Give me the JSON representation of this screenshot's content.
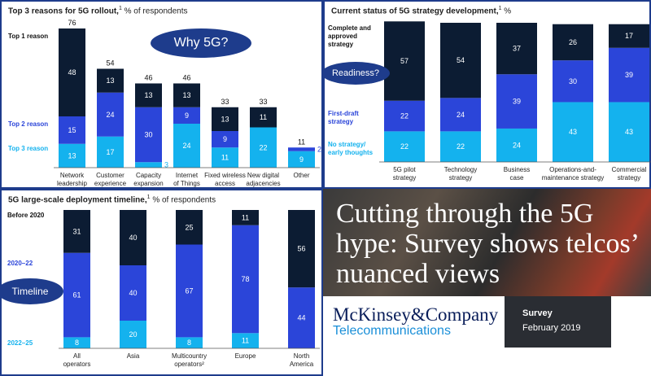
{
  "colors": {
    "dark": "#0c1c33",
    "mid": "#2b45d9",
    "light": "#14b2ee",
    "accent": "#1e3c8c"
  },
  "bubbles": {
    "why": "Why 5G?",
    "readiness": "Readiness?",
    "timeline": "Timeline"
  },
  "chart_data": [
    {
      "type": "bar",
      "title": "Top 3 reasons for 5G rollout,",
      "title_note": "1",
      "subtitle": "% of respondents",
      "categories": [
        [
          "Network",
          "leadership"
        ],
        [
          "Customer",
          "experience"
        ],
        [
          "Capacity",
          "expansion"
        ],
        [
          "Internet",
          "of Things"
        ],
        [
          "Fixed wireless",
          "access"
        ],
        [
          "New digital",
          "adjacencies"
        ],
        [
          "Other"
        ]
      ],
      "series": [
        {
          "name": "Top 1 reason",
          "values": [
            48,
            13,
            13,
            13,
            13,
            11,
            0
          ]
        },
        {
          "name": "Top 2 reason",
          "values": [
            15,
            24,
            30,
            9,
            9,
            0,
            2
          ]
        },
        {
          "name": "Top 3 reason",
          "values": [
            13,
            17,
            3,
            24,
            11,
            22,
            9
          ]
        }
      ],
      "totals": [
        76,
        54,
        46,
        46,
        33,
        33,
        11
      ],
      "ylim": [
        0,
        80
      ]
    },
    {
      "type": "bar",
      "title": "Current status of 5G strategy development,",
      "title_note": "1",
      "subtitle": "%",
      "categories": [
        [
          "5G pilot",
          "strategy"
        ],
        [
          "Technology",
          "strategy"
        ],
        [
          "Business",
          "case"
        ],
        [
          "Operations-and-",
          "maintenance strategy"
        ],
        [
          "Commercial",
          "strategy"
        ]
      ],
      "series": [
        {
          "name": [
            "Complete and",
            "approved",
            "strategy"
          ],
          "values": [
            57,
            54,
            37,
            26,
            17
          ]
        },
        {
          "name": [
            "First-draft",
            "strategy"
          ],
          "values": [
            22,
            24,
            39,
            30,
            39
          ]
        },
        {
          "name": [
            "No strategy/",
            "early thoughts"
          ],
          "values": [
            22,
            22,
            24,
            43,
            43
          ]
        }
      ],
      "ylim": [
        0,
        100
      ]
    },
    {
      "type": "bar",
      "title": "5G large-scale deployment timeline,",
      "title_note": "1",
      "subtitle": "% of respondents",
      "categories": [
        [
          "All",
          "operators"
        ],
        [
          "Asia"
        ],
        [
          "Multicountry",
          "operators²"
        ],
        [
          "Europe"
        ],
        [
          "North",
          "America"
        ]
      ],
      "series": [
        {
          "name": "Before 2020",
          "values": [
            31,
            40,
            25,
            11,
            56
          ]
        },
        {
          "name": "2020–22",
          "values": [
            61,
            40,
            67,
            78,
            44
          ]
        },
        {
          "name": "2022–25",
          "values": [
            8,
            20,
            8,
            11,
            0
          ]
        }
      ],
      "ylim": [
        0,
        100
      ]
    }
  ],
  "headline": "Cutting through the 5G hype: Survey shows telcos’ nuanced views",
  "brand": {
    "logo": "McKinsey&Company",
    "unit": "Telecommunications"
  },
  "survey": {
    "label": "Survey",
    "date": "February 2019"
  }
}
